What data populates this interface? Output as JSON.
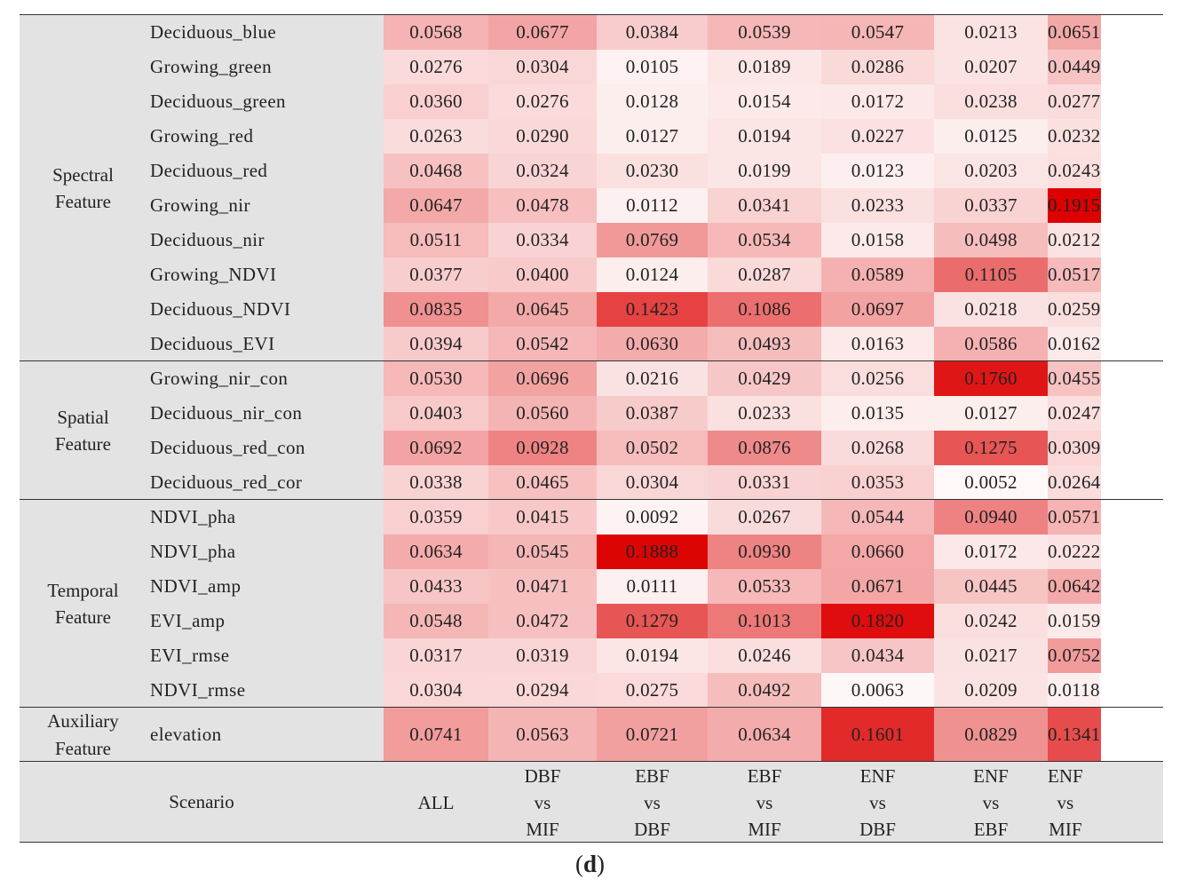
{
  "chart_data": {
    "type": "heatmap",
    "label": "d",
    "groups": [
      {
        "name": [
          "Spectral",
          "Feature"
        ],
        "rows": [
          {
            "feature": "Deciduous_blue",
            "values": [
              0.0568,
              0.0677,
              0.0384,
              0.0539,
              0.0547,
              0.0213,
              0.0651
            ]
          },
          {
            "feature": "Growing_green",
            "values": [
              0.0276,
              0.0304,
              0.0105,
              0.0189,
              0.0286,
              0.0207,
              0.0449
            ]
          },
          {
            "feature": "Deciduous_green",
            "values": [
              0.036,
              0.0276,
              0.0128,
              0.0154,
              0.0172,
              0.0238,
              0.0277
            ]
          },
          {
            "feature": "Growing_red",
            "values": [
              0.0263,
              0.029,
              0.0127,
              0.0194,
              0.0227,
              0.0125,
              0.0232
            ]
          },
          {
            "feature": "Deciduous_red",
            "values": [
              0.0468,
              0.0324,
              0.023,
              0.0199,
              0.0123,
              0.0203,
              0.0243
            ]
          },
          {
            "feature": "Growing_nir",
            "values": [
              0.0647,
              0.0478,
              0.0112,
              0.0341,
              0.0233,
              0.0337,
              0.1915
            ]
          },
          {
            "feature": "Deciduous_nir",
            "values": [
              0.0511,
              0.0334,
              0.0769,
              0.0534,
              0.0158,
              0.0498,
              0.0212
            ]
          },
          {
            "feature": "Growing_NDVI",
            "values": [
              0.0377,
              0.04,
              0.0124,
              0.0287,
              0.0589,
              0.1105,
              0.0517
            ]
          },
          {
            "feature": "Deciduous_NDVI",
            "values": [
              0.0835,
              0.0645,
              0.1423,
              0.1086,
              0.0697,
              0.0218,
              0.0259
            ]
          },
          {
            "feature": "Deciduous_EVI",
            "values": [
              0.0394,
              0.0542,
              0.063,
              0.0493,
              0.0163,
              0.0586,
              0.0162
            ]
          }
        ]
      },
      {
        "name": [
          "Spatial",
          "Feature"
        ],
        "rows": [
          {
            "feature": "Growing_nir_con",
            "values": [
              0.053,
              0.0696,
              0.0216,
              0.0429,
              0.0256,
              0.176,
              0.0455
            ]
          },
          {
            "feature": "Deciduous_nir_con",
            "values": [
              0.0403,
              0.056,
              0.0387,
              0.0233,
              0.0135,
              0.0127,
              0.0247
            ]
          },
          {
            "feature": "Deciduous_red_con",
            "values": [
              0.0692,
              0.0928,
              0.0502,
              0.0876,
              0.0268,
              0.1275,
              0.0309
            ]
          },
          {
            "feature": "Deciduous_red_cor",
            "values": [
              0.0338,
              0.0465,
              0.0304,
              0.0331,
              0.0353,
              0.0052,
              0.0264
            ]
          }
        ]
      },
      {
        "name": [
          "Temporal",
          "Feature"
        ],
        "rows": [
          {
            "feature": "NDVI_pha",
            "values": [
              0.0359,
              0.0415,
              0.0092,
              0.0267,
              0.0544,
              0.094,
              0.0571
            ]
          },
          {
            "feature": "NDVI_pha",
            "values": [
              0.0634,
              0.0545,
              0.1888,
              0.093,
              0.066,
              0.0172,
              0.0222
            ]
          },
          {
            "feature": "NDVI_amp",
            "values": [
              0.0433,
              0.0471,
              0.0111,
              0.0533,
              0.0671,
              0.0445,
              0.0642
            ]
          },
          {
            "feature": "EVI_amp",
            "values": [
              0.0548,
              0.0472,
              0.1279,
              0.1013,
              0.182,
              0.0242,
              0.0159
            ]
          },
          {
            "feature": "EVI_rmse",
            "values": [
              0.0317,
              0.0319,
              0.0194,
              0.0246,
              0.0434,
              0.0217,
              0.0752
            ]
          },
          {
            "feature": "NDVI_rmse",
            "values": [
              0.0304,
              0.0294,
              0.0275,
              0.0492,
              0.0063,
              0.0209,
              0.0118
            ]
          }
        ]
      },
      {
        "name": [
          "Auxiliary",
          "Feature"
        ],
        "rows": [
          {
            "feature": "elevation",
            "values": [
              0.0741,
              0.0563,
              0.0721,
              0.0634,
              0.1601,
              0.0829,
              0.1341
            ]
          }
        ]
      }
    ],
    "scenario_label": "Scenario",
    "scenarios": [
      [
        "ALL"
      ],
      [
        "DBF",
        "vs",
        "MIF"
      ],
      [
        "EBF",
        "vs",
        "DBF"
      ],
      [
        "EBF",
        "vs",
        "MIF"
      ],
      [
        "ENF",
        "vs",
        "DBF"
      ],
      [
        "ENF",
        "vs",
        "EBF"
      ],
      [
        "ENF",
        "vs",
        "MIF"
      ]
    ],
    "color_low": "#ffffff",
    "color_high": "#dd0000",
    "value_range": [
      0,
      0.1915
    ]
  }
}
